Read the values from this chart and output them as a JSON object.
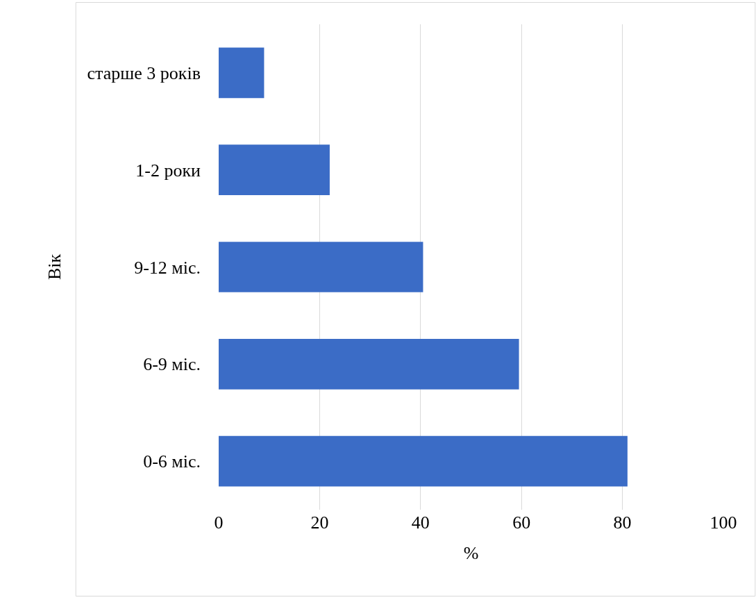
{
  "chart_data": {
    "type": "bar",
    "orientation": "horizontal",
    "categories": [
      "старше 3 років",
      "1-2 роки",
      "9-12 міс.",
      "6-9 міс.",
      "0-6 міс."
    ],
    "values": [
      9,
      22,
      40.5,
      59.5,
      81
    ],
    "color": "#3b6cc6",
    "xlabel": "%",
    "ylabel": "Вік",
    "xlim": [
      0,
      100
    ],
    "xticks": [
      0,
      20,
      40,
      60,
      80,
      100
    ],
    "grid": "x"
  }
}
